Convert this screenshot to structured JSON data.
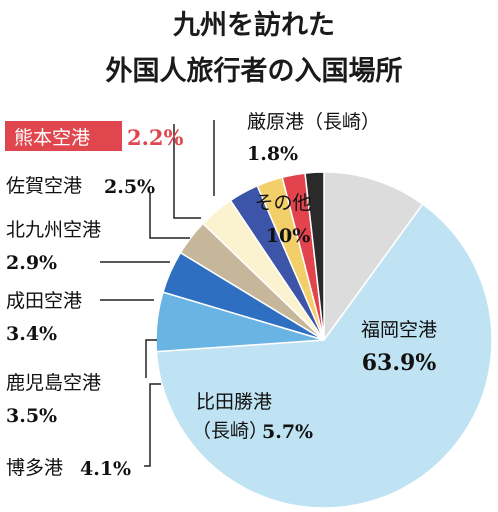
{
  "chart_data": {
    "type": "pie",
    "title_lines": [
      "九州を訪れた",
      "外国人旅行者の入国場所"
    ],
    "start": "top, clockwise",
    "slices": [
      {
        "label": "その他",
        "value": 10,
        "display": "10%",
        "color": "#dcdcdc"
      },
      {
        "label": "福岡空港",
        "value": 63.9,
        "display": "63.9%",
        "color": "#bfe3f2"
      },
      {
        "label": "比田勝港（長崎）",
        "value": 5.7,
        "display": "5.7%",
        "color": "#6ab4e4"
      },
      {
        "label": "博多港",
        "value": 4.1,
        "display": "4.1%",
        "color": "#2f6fc2"
      },
      {
        "label": "鹿児島空港",
        "value": 3.5,
        "display": "3.5%",
        "color": "#c6b79b"
      },
      {
        "label": "成田空港",
        "value": 3.4,
        "display": "3.4%",
        "color": "#fbf3cf"
      },
      {
        "label": "北九州空港",
        "value": 2.9,
        "display": "2.9%",
        "color": "#3d55a8"
      },
      {
        "label": "佐賀空港",
        "value": 2.5,
        "display": "2.5%",
        "color": "#f3cf6a"
      },
      {
        "label": "熊本空港",
        "value": 2.2,
        "display": "2.2%",
        "color": "#e2434c"
      },
      {
        "label": "厳原港（長崎）",
        "value": 1.8,
        "display": "1.8%",
        "color": "#2a2a2a"
      }
    ]
  }
}
